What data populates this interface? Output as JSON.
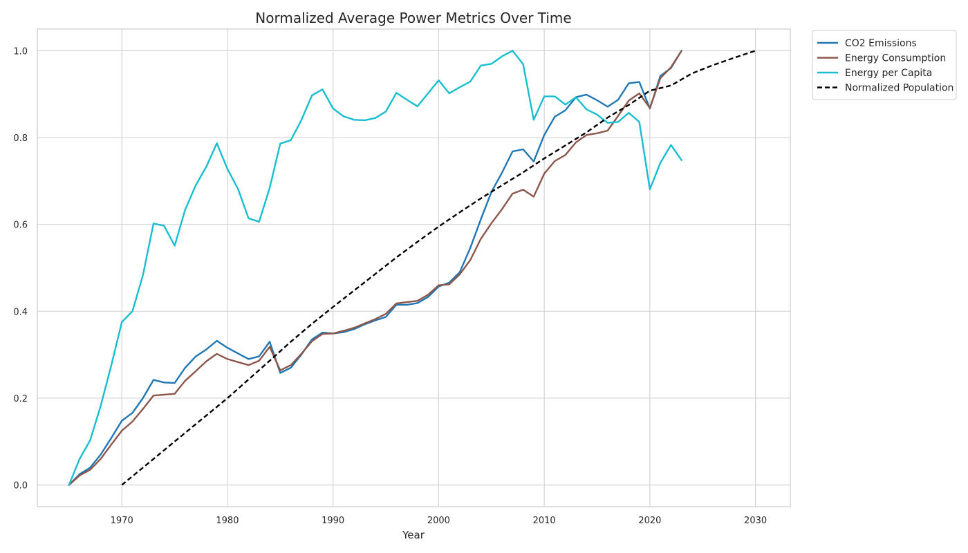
{
  "chart_data": {
    "type": "line",
    "title": "Normalized Average Power Metrics Over Time",
    "xlabel": "Year",
    "ylabel": "",
    "xlim": [
      1962,
      2033.3
    ],
    "ylim": [
      -0.05,
      1.05
    ],
    "xticks": [
      1970,
      1980,
      1990,
      2000,
      2010,
      2020,
      2030
    ],
    "yticks": [
      0.0,
      0.2,
      0.4,
      0.6,
      0.8,
      1.0
    ],
    "grid": true,
    "legend_position": "outside-top-right",
    "series": [
      {
        "name": "CO2 Emissions",
        "color": "#1f77b4",
        "style": "solid",
        "x": [
          1965,
          1966,
          1967,
          1968,
          1969,
          1970,
          1971,
          1972,
          1973,
          1974,
          1975,
          1976,
          1977,
          1978,
          1979,
          1980,
          1981,
          1982,
          1983,
          1984,
          1985,
          1986,
          1987,
          1988,
          1989,
          1990,
          1991,
          1992,
          1993,
          1994,
          1995,
          1996,
          1997,
          1998,
          1999,
          2000,
          2001,
          2002,
          2003,
          2004,
          2005,
          2006,
          2007,
          2008,
          2009,
          2010,
          2011,
          2012,
          2013,
          2014,
          2015,
          2016,
          2017,
          2018,
          2019,
          2020,
          2021,
          2022,
          2023
        ],
        "y": [
          0.0,
          0.025,
          0.04,
          0.07,
          0.108,
          0.148,
          0.166,
          0.2,
          0.242,
          0.236,
          0.235,
          0.27,
          0.296,
          0.312,
          0.332,
          0.316,
          0.303,
          0.29,
          0.296,
          0.33,
          0.258,
          0.27,
          0.3,
          0.335,
          0.351,
          0.349,
          0.352,
          0.359,
          0.37,
          0.379,
          0.387,
          0.415,
          0.415,
          0.419,
          0.433,
          0.457,
          0.466,
          0.49,
          0.546,
          0.612,
          0.675,
          0.719,
          0.768,
          0.773,
          0.745,
          0.806,
          0.848,
          0.863,
          0.893,
          0.899,
          0.886,
          0.871,
          0.887,
          0.925,
          0.928,
          0.867,
          0.942,
          0.96,
          1.0
        ]
      },
      {
        "name": "Energy Consumption",
        "color": "#8c564b",
        "style": "solid",
        "x": [
          1965,
          1966,
          1967,
          1968,
          1969,
          1970,
          1971,
          1972,
          1973,
          1974,
          1975,
          1976,
          1977,
          1978,
          1979,
          1980,
          1981,
          1982,
          1983,
          1984,
          1985,
          1986,
          1987,
          1988,
          1989,
          1990,
          1991,
          1992,
          1993,
          1994,
          1995,
          1996,
          1997,
          1998,
          1999,
          2000,
          2001,
          2002,
          2003,
          2004,
          2005,
          2006,
          2007,
          2008,
          2009,
          2010,
          2011,
          2012,
          2013,
          2014,
          2015,
          2016,
          2017,
          2018,
          2019,
          2020,
          2021,
          2022,
          2023
        ],
        "y": [
          0.0,
          0.022,
          0.035,
          0.06,
          0.093,
          0.125,
          0.146,
          0.175,
          0.206,
          0.208,
          0.21,
          0.24,
          0.262,
          0.285,
          0.302,
          0.29,
          0.283,
          0.276,
          0.286,
          0.318,
          0.264,
          0.276,
          0.302,
          0.331,
          0.348,
          0.349,
          0.355,
          0.362,
          0.372,
          0.382,
          0.394,
          0.418,
          0.421,
          0.424,
          0.438,
          0.46,
          0.462,
          0.485,
          0.518,
          0.567,
          0.603,
          0.635,
          0.671,
          0.68,
          0.664,
          0.717,
          0.746,
          0.76,
          0.789,
          0.806,
          0.81,
          0.816,
          0.85,
          0.885,
          0.902,
          0.868,
          0.937,
          0.962,
          1.0
        ]
      },
      {
        "name": "Energy per Capita",
        "color": "#17becf",
        "style": "solid",
        "x": [
          1965,
          1966,
          1967,
          1968,
          1969,
          1970,
          1971,
          1972,
          1973,
          1974,
          1975,
          1976,
          1977,
          1978,
          1979,
          1980,
          1981,
          1982,
          1983,
          1984,
          1985,
          1986,
          1987,
          1988,
          1989,
          1990,
          1991,
          1992,
          1993,
          1994,
          1995,
          1996,
          1997,
          1998,
          1999,
          2000,
          2001,
          2002,
          2003,
          2004,
          2005,
          2006,
          2007,
          2008,
          2009,
          2010,
          2011,
          2012,
          2013,
          2014,
          2015,
          2016,
          2017,
          2018,
          2019,
          2020,
          2021,
          2022,
          2023
        ],
        "y": [
          0.0,
          0.06,
          0.103,
          0.182,
          0.275,
          0.375,
          0.4,
          0.483,
          0.602,
          0.597,
          0.551,
          0.634,
          0.69,
          0.733,
          0.787,
          0.728,
          0.682,
          0.614,
          0.606,
          0.684,
          0.786,
          0.794,
          0.84,
          0.897,
          0.911,
          0.867,
          0.849,
          0.841,
          0.84,
          0.845,
          0.86,
          0.903,
          0.887,
          0.872,
          0.902,
          0.932,
          0.902,
          0.916,
          0.929,
          0.966,
          0.97,
          0.987,
          1.0,
          0.969,
          0.841,
          0.895,
          0.895,
          0.876,
          0.893,
          0.865,
          0.853,
          0.834,
          0.836,
          0.857,
          0.836,
          0.681,
          0.742,
          0.783,
          0.748
        ]
      },
      {
        "name": "Normalized Population",
        "color": "#000000",
        "style": "dashed",
        "x": [
          1970,
          1972,
          1974,
          1976,
          1978,
          1980,
          1982,
          1984,
          1986,
          1988,
          1990,
          1992,
          1994,
          1996,
          1998,
          2000,
          2002,
          2004,
          2006,
          2008,
          2010,
          2012,
          2014,
          2016,
          2018,
          2020,
          2022,
          2024,
          2026,
          2028,
          2030
        ],
        "y": [
          0.0,
          0.04,
          0.08,
          0.12,
          0.16,
          0.2,
          0.243,
          0.286,
          0.33,
          0.371,
          0.41,
          0.448,
          0.486,
          0.524,
          0.56,
          0.595,
          0.628,
          0.66,
          0.69,
          0.72,
          0.752,
          0.782,
          0.812,
          0.846,
          0.875,
          0.908,
          0.92,
          0.948,
          0.967,
          0.984,
          1.0
        ]
      }
    ]
  }
}
